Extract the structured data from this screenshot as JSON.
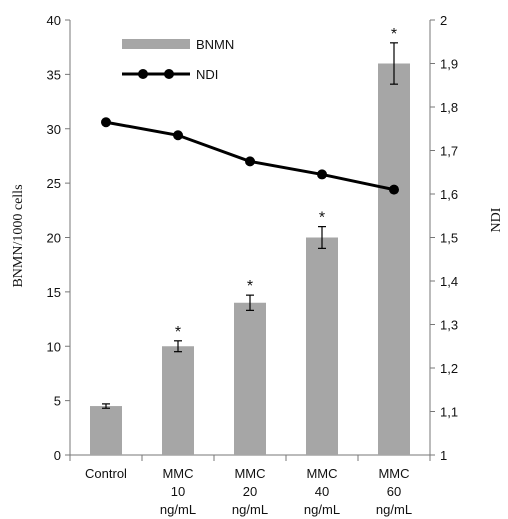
{
  "chart_data": {
    "type": "bar",
    "categories": [
      [
        "Control"
      ],
      [
        "MMC",
        "10",
        "ng/mL"
      ],
      [
        "MMC",
        "20",
        "ng/mL"
      ],
      [
        "MMC",
        "40",
        "ng/mL"
      ],
      [
        "MMC",
        "60",
        "ng/mL"
      ]
    ],
    "series": [
      {
        "name": "BNMN",
        "type": "bar",
        "axis": "left",
        "color": "#a6a6a6",
        "values": [
          4.5,
          10.0,
          14.0,
          20.0,
          36.0
        ],
        "errors": [
          0.2,
          0.5,
          0.7,
          1.0,
          1.9
        ],
        "markers": [
          "",
          "*",
          "*",
          "*",
          "*"
        ]
      },
      {
        "name": "NDI",
        "type": "line",
        "axis": "right",
        "color": "#000000",
        "values": [
          1.765,
          1.735,
          1.675,
          1.645,
          1.61
        ]
      }
    ],
    "ylabel": "BNMN/1000 cells",
    "y2label": "NDI",
    "ylim": [
      0,
      40
    ],
    "y2lim": [
      1,
      2
    ],
    "yticks": [
      "0",
      "5",
      "10",
      "15",
      "20",
      "25",
      "30",
      "35",
      "40"
    ],
    "y2ticks": [
      "1",
      "1,1",
      "1,2",
      "1,3",
      "1,4",
      "1,5",
      "1,6",
      "1,7",
      "1,8",
      "1,9",
      "2"
    ],
    "legend": "top-left",
    "grid": false
  }
}
